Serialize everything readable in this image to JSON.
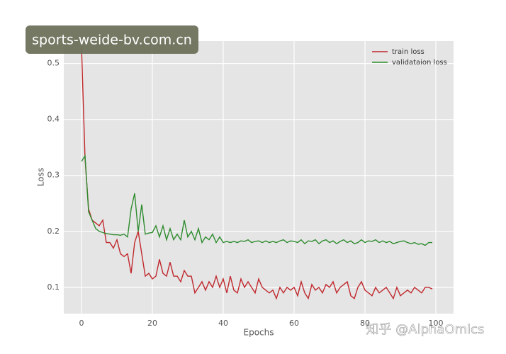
{
  "chart_data": {
    "type": "line",
    "x": [
      0,
      1,
      2,
      3,
      4,
      5,
      6,
      7,
      8,
      9,
      10,
      11,
      12,
      13,
      14,
      15,
      16,
      17,
      18,
      19,
      20,
      21,
      22,
      23,
      24,
      25,
      26,
      27,
      28,
      29,
      30,
      31,
      32,
      33,
      34,
      35,
      36,
      37,
      38,
      39,
      40,
      41,
      42,
      43,
      44,
      45,
      46,
      47,
      48,
      49,
      50,
      51,
      52,
      53,
      54,
      55,
      56,
      57,
      58,
      59,
      60,
      61,
      62,
      63,
      64,
      65,
      66,
      67,
      68,
      69,
      70,
      71,
      72,
      73,
      74,
      75,
      76,
      77,
      78,
      79,
      80,
      81,
      82,
      83,
      84,
      85,
      86,
      87,
      88,
      89,
      90,
      91,
      92,
      93,
      94,
      95,
      96,
      97,
      98,
      99
    ],
    "series": [
      {
        "name": "train loss",
        "color": "#c0282d",
        "values": [
          0.53,
          0.33,
          0.24,
          0.22,
          0.215,
          0.21,
          0.22,
          0.18,
          0.18,
          0.17,
          0.185,
          0.16,
          0.155,
          0.16,
          0.125,
          0.18,
          0.2,
          0.16,
          0.12,
          0.125,
          0.115,
          0.12,
          0.15,
          0.125,
          0.12,
          0.145,
          0.12,
          0.12,
          0.11,
          0.13,
          0.12,
          0.12,
          0.09,
          0.1,
          0.11,
          0.095,
          0.11,
          0.1,
          0.12,
          0.1,
          0.115,
          0.09,
          0.12,
          0.095,
          0.09,
          0.115,
          0.1,
          0.11,
          0.1,
          0.09,
          0.115,
          0.1,
          0.095,
          0.09,
          0.095,
          0.08,
          0.1,
          0.09,
          0.1,
          0.095,
          0.1,
          0.085,
          0.11,
          0.09,
          0.08,
          0.105,
          0.095,
          0.1,
          0.09,
          0.105,
          0.1,
          0.11,
          0.09,
          0.1,
          0.105,
          0.11,
          0.085,
          0.08,
          0.1,
          0.11,
          0.095,
          0.09,
          0.085,
          0.1,
          0.09,
          0.095,
          0.1,
          0.09,
          0.08,
          0.1,
          0.085,
          0.09,
          0.095,
          0.09,
          0.1,
          0.095,
          0.09,
          0.1,
          0.1,
          0.097
        ]
      },
      {
        "name": "validataion loss",
        "color": "#2e8b2e",
        "values": [
          0.325,
          0.335,
          0.235,
          0.22,
          0.205,
          0.2,
          0.198,
          0.196,
          0.195,
          0.194,
          0.194,
          0.193,
          0.195,
          0.19,
          0.24,
          0.268,
          0.2,
          0.248,
          0.195,
          0.197,
          0.198,
          0.21,
          0.19,
          0.21,
          0.185,
          0.205,
          0.185,
          0.195,
          0.185,
          0.22,
          0.19,
          0.2,
          0.185,
          0.205,
          0.18,
          0.19,
          0.185,
          0.195,
          0.18,
          0.19,
          0.18,
          0.182,
          0.18,
          0.182,
          0.18,
          0.183,
          0.182,
          0.185,
          0.18,
          0.182,
          0.183,
          0.18,
          0.183,
          0.18,
          0.182,
          0.18,
          0.183,
          0.185,
          0.18,
          0.183,
          0.182,
          0.18,
          0.185,
          0.178,
          0.183,
          0.182,
          0.185,
          0.178,
          0.183,
          0.185,
          0.18,
          0.183,
          0.178,
          0.182,
          0.185,
          0.18,
          0.183,
          0.178,
          0.18,
          0.185,
          0.18,
          0.183,
          0.182,
          0.185,
          0.18,
          0.183,
          0.18,
          0.182,
          0.178,
          0.18,
          0.182,
          0.183,
          0.18,
          0.178,
          0.18,
          0.177,
          0.178,
          0.175,
          0.18,
          0.18
        ]
      }
    ],
    "xlabel": "Epochs",
    "ylabel": "Loss",
    "xlim": [
      -5,
      105
    ],
    "ylim": [
      0.053,
      0.54
    ],
    "xticks": [
      0,
      20,
      40,
      60,
      80,
      100
    ],
    "yticks": [
      0.1,
      0.2,
      0.3,
      0.4,
      0.5
    ],
    "grid": true,
    "legend": "upper right"
  },
  "watermarks": [
    "sports-weide-bv.com.cn",
    "知乎 @AlphaOmics"
  ]
}
